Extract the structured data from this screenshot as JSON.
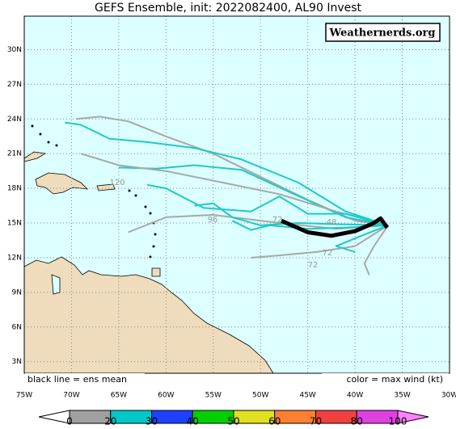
{
  "title": "GEFS Ensemble, init: 2022082400, AL90 Invest",
  "watermark": "Weathernerds.org",
  "mean_note": "black line = ens mean",
  "color_note": "color = max wind (kt)",
  "map": {
    "lonlim": [
      -75,
      -30
    ],
    "latlim": [
      2,
      32.9
    ],
    "lonticks": [
      {
        "value": -75,
        "label": "75W"
      },
      {
        "value": -70,
        "label": "70W"
      },
      {
        "value": -65,
        "label": "65W"
      },
      {
        "value": -60,
        "label": "60W"
      },
      {
        "value": -55,
        "label": "55W"
      },
      {
        "value": -50,
        "label": "50W"
      },
      {
        "value": -45,
        "label": "45W"
      },
      {
        "value": -40,
        "label": "40W"
      },
      {
        "value": -35,
        "label": "35W"
      },
      {
        "value": -30,
        "label": "30W"
      }
    ],
    "latticks": [
      {
        "value": 3,
        "label": "3N"
      },
      {
        "value": 6,
        "label": "6N"
      },
      {
        "value": 9,
        "label": "9N"
      },
      {
        "value": 12,
        "label": "12N"
      },
      {
        "value": 15,
        "label": "15N"
      },
      {
        "value": 18,
        "label": "18N"
      },
      {
        "value": 21,
        "label": "21N"
      },
      {
        "value": 24,
        "label": "24N"
      },
      {
        "value": 27,
        "label": "27N"
      },
      {
        "value": 30,
        "label": "30N"
      }
    ]
  },
  "tracks": [
    {
      "color": "#a8a8a8",
      "lon": [
        -36.5,
        -40,
        -45,
        -50,
        -55,
        -60,
        -64,
        -67,
        -69.5
      ],
      "lat": [
        14.8,
        15.2,
        17,
        19,
        21,
        22.5,
        23.8,
        24.2,
        24
      ]
    },
    {
      "color": "#20c8c8",
      "lon": [
        -36.5,
        -41,
        -46,
        -52,
        -57,
        -62,
        -66,
        -69,
        -70.7
      ],
      "lat": [
        14.8,
        16,
        18.5,
        20.5,
        21.5,
        22,
        22.3,
        23.5,
        23.7
      ]
    },
    {
      "color": "#20c8c8",
      "lon": [
        -36.5,
        -41,
        -47,
        -52,
        -57,
        -61,
        -65
      ],
      "lat": [
        14.8,
        15.5,
        17.7,
        19.6,
        20,
        19.7,
        19.8
      ]
    },
    {
      "color": "#a8a8a8",
      "lon": [
        -36.5,
        -42,
        -48,
        -54,
        -60,
        -65,
        -69
      ],
      "lat": [
        14.8,
        16,
        17.5,
        18.5,
        19.5,
        20,
        21
      ]
    },
    {
      "color": "#20c8c8",
      "lon": [
        -36.5,
        -41,
        -45,
        -48,
        -51,
        -56,
        -60,
        -62
      ],
      "lat": [
        14.8,
        15.8,
        15.8,
        17.3,
        16,
        16.3,
        18,
        18.3
      ]
    },
    {
      "color": "#a8a8a8",
      "lon": [
        -36.5,
        -42,
        -48,
        -55,
        -60,
        -64
      ],
      "lat": [
        14.8,
        14.5,
        15,
        15.7,
        15.5,
        14.2
      ]
    },
    {
      "color": "#20c8c8",
      "lon": [
        -36.5,
        -42,
        -46,
        -50,
        -53,
        -55,
        -57
      ],
      "lat": [
        14.8,
        14.9,
        15,
        14.8,
        15.5,
        16.7,
        16.5
      ]
    },
    {
      "color": "#a8a8a8",
      "lon": [
        -36.5,
        -40,
        -44,
        -48,
        -51
      ],
      "lat": [
        14.8,
        13,
        12.5,
        12.2,
        12
      ]
    },
    {
      "color": "#20c8c8",
      "lon": [
        -36.5,
        -39,
        -42,
        -40
      ],
      "lat": [
        14.8,
        14,
        13,
        12.5
      ]
    },
    {
      "color": "#a8a8a8",
      "lon": [
        -36.5,
        -38,
        -39,
        -38.5
      ],
      "lat": [
        14.8,
        13,
        11.5,
        10.5
      ]
    },
    {
      "color": "#20c8c8",
      "lon": [
        -36.5,
        -41,
        -45,
        -49,
        -51,
        -53
      ],
      "lat": [
        14.8,
        14.6,
        14.5,
        14.8,
        14.4,
        15.2
      ]
    }
  ],
  "mean_track": {
    "color": "#000000",
    "lon": [
      -47.8,
      -45,
      -42.5,
      -40,
      -38,
      -37.3,
      -36.6
    ],
    "lat": [
      15.2,
      14.2,
      13.9,
      14.3,
      15,
      15.4,
      14.6
    ]
  },
  "hour_labels": [
    "120",
    "96",
    "72",
    "72",
    "48",
    "72"
  ],
  "colorbar": {
    "levels": [
      0,
      20,
      30,
      40,
      50,
      60,
      70,
      80,
      100
    ],
    "colors": [
      "#a0a0a0",
      "#00c8c8",
      "#2040ff",
      "#00d000",
      "#e0e020",
      "#ff8030",
      "#f04040",
      "#e040e0"
    ],
    "under_color": "#ffffff",
    "over_color": "#ff80ff"
  }
}
